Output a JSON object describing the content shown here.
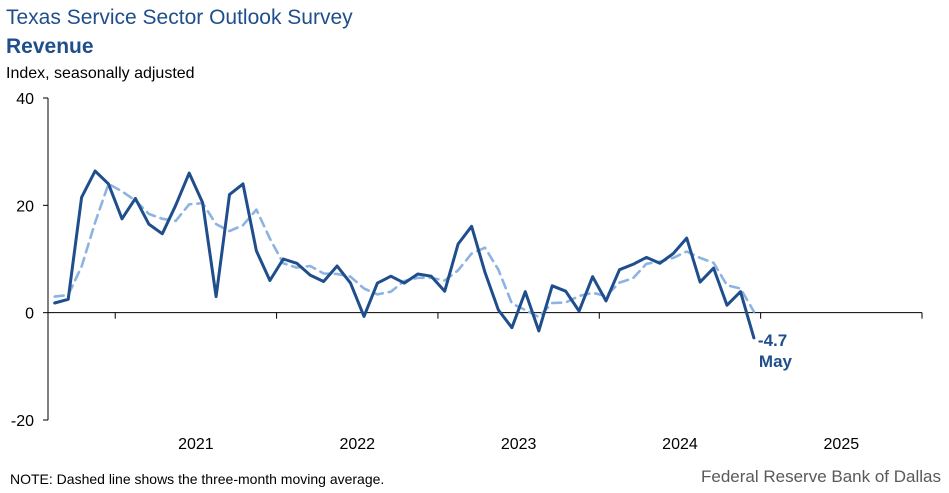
{
  "header": {
    "title": "Texas Service Sector Outlook Survey",
    "subtitle": "Revenue",
    "ylabel": "Index, seasonally adjusted"
  },
  "footer": {
    "note": "NOTE: Dashed line shows the three-month  moving average.",
    "source": "Federal Reserve Bank of Dallas"
  },
  "chart_data": {
    "type": "line",
    "title": "Revenue",
    "ylabel": "Index, seasonally adjusted",
    "ylim": [
      -20,
      40
    ],
    "yticks": [
      40,
      20,
      0,
      -20
    ],
    "xlim": [
      "2020-08",
      "2025-12"
    ],
    "xtick_labels": [
      "2021",
      "2022",
      "2023",
      "2024",
      "2025"
    ],
    "colors": {
      "index": "#1f4e8c",
      "moving_average": "#8db3e2"
    },
    "series": [
      {
        "key": "index",
        "start": "2020-08",
        "style": "solid",
        "values": [
          1.8,
          2.5,
          21.5,
          26.4,
          24.0,
          17.5,
          21.3,
          16.5,
          14.7,
          20.0,
          26.0,
          20.5,
          3.0,
          22.0,
          24.0,
          11.5,
          6.0,
          10.0,
          9.2,
          7.0,
          5.8,
          8.7,
          5.5,
          -0.7,
          5.5,
          6.8,
          5.5,
          7.2,
          6.8,
          4.0,
          12.8,
          16.1,
          7.5,
          0.5,
          -2.8,
          3.9,
          -3.4,
          5.0,
          4.0,
          0.3,
          6.7,
          2.2,
          8.0,
          9.0,
          10.3,
          9.2,
          11.0,
          13.9,
          5.7,
          8.3,
          1.4,
          3.9,
          -4.7
        ]
      },
      {
        "key": "moving_average",
        "start": "2020-08",
        "style": "dashed",
        "values": [
          3.0,
          3.3,
          8.6,
          16.8,
          24.0,
          22.6,
          20.9,
          18.4,
          17.5,
          17.1,
          20.2,
          20.4,
          16.5,
          15.2,
          16.3,
          19.2,
          13.8,
          9.2,
          8.4,
          8.7,
          7.3,
          7.2,
          6.7,
          4.5,
          3.4,
          3.9,
          5.9,
          6.5,
          6.5,
          6.0,
          7.9,
          11.0,
          12.1,
          8.0,
          1.7,
          0.5,
          -0.8,
          1.8,
          1.9,
          3.1,
          3.7,
          3.1,
          5.6,
          6.4,
          9.1,
          9.5,
          10.2,
          11.4,
          10.2,
          9.3,
          5.1,
          4.5,
          0.2
        ]
      }
    ],
    "annotation": {
      "value": "-4.7",
      "label": "May"
    }
  }
}
